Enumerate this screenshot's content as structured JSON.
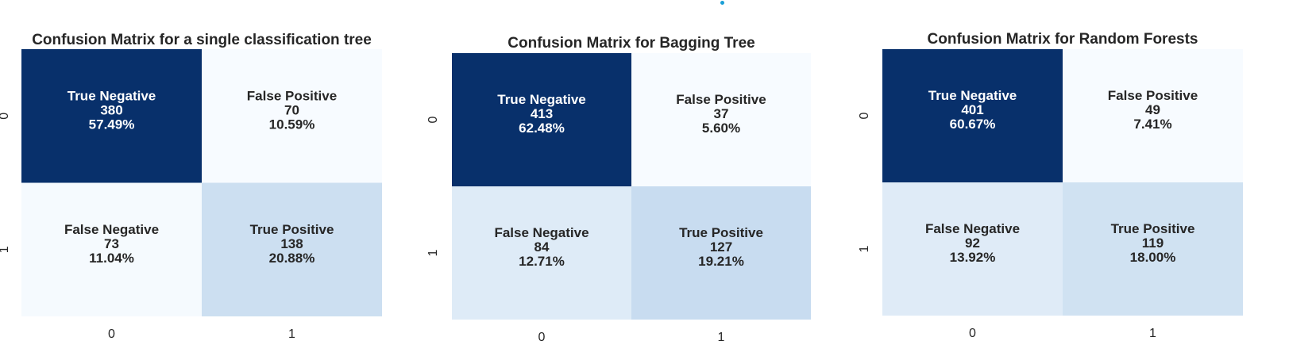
{
  "colors": {
    "dark": "#08306b",
    "light": "#f7fbff",
    "mid_light": "#dbe9f6",
    "mid": "#c6dbef",
    "text_on_dark": "#ffffff",
    "text_on_light": "#262626",
    "tick_text": "#262626"
  },
  "chart_data": [
    {
      "type": "heatmap",
      "title": "Confusion Matrix for a single classification tree",
      "x_tick_labels": [
        "0",
        "1"
      ],
      "y_tick_labels": [
        "0",
        "1"
      ],
      "cells": [
        [
          {
            "label": "True Negative",
            "count": "380",
            "percent": "57.49%",
            "value": 380
          },
          {
            "label": "False Positive",
            "count": "70",
            "percent": "10.59%",
            "value": 70
          }
        ],
        [
          {
            "label": "False Negative",
            "count": "73",
            "percent": "11.04%",
            "value": 73
          },
          {
            "label": "True Positive",
            "count": "138",
            "percent": "20.88%",
            "value": 138
          }
        ]
      ]
    },
    {
      "type": "heatmap",
      "title": "Confusion Matrix for Bagging Tree",
      "x_tick_labels": [
        "0",
        "1"
      ],
      "y_tick_labels": [
        "0",
        "1"
      ],
      "cells": [
        [
          {
            "label": "True Negative",
            "count": "413",
            "percent": "62.48%",
            "value": 413
          },
          {
            "label": "False Positive",
            "count": "37",
            "percent": "5.60%",
            "value": 37
          }
        ],
        [
          {
            "label": "False Negative",
            "count": "84",
            "percent": "12.71%",
            "value": 84
          },
          {
            "label": "True Positive",
            "count": "127",
            "percent": "19.21%",
            "value": 127
          }
        ]
      ]
    },
    {
      "type": "heatmap",
      "title": "Confusion Matrix for Random Forests",
      "x_tick_labels": [
        "0",
        "1"
      ],
      "y_tick_labels": [
        "0",
        "1"
      ],
      "cells": [
        [
          {
            "label": "True Negative",
            "count": "401",
            "percent": "60.67%",
            "value": 401
          },
          {
            "label": "False Positive",
            "count": "49",
            "percent": "7.41%",
            "value": 49
          }
        ],
        [
          {
            "label": "False Negative",
            "count": "92",
            "percent": "13.92%",
            "value": 92
          },
          {
            "label": "True Positive",
            "count": "119",
            "percent": "18.00%",
            "value": 119
          }
        ]
      ]
    }
  ]
}
